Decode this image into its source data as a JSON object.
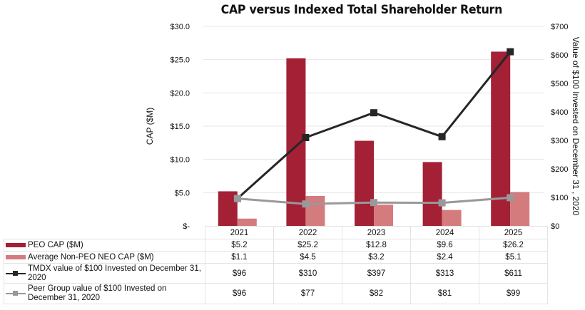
{
  "chart_data": {
    "type": "bar",
    "title": "CAP versus Indexed Total Shareholder Return",
    "categories": [
      "2021",
      "2022",
      "2023",
      "2024",
      "2025"
    ],
    "left_axis": {
      "label": "CAP ($M)",
      "range": [
        0,
        30
      ],
      "ticks": [
        0,
        5,
        10,
        15,
        20,
        25,
        30
      ],
      "tick_labels": [
        "$-",
        "$5.0",
        "$10.0",
        "$15.0",
        "$20.0",
        "$25.0",
        "$30.0"
      ]
    },
    "right_axis": {
      "label": "Value of $100 Invested on December 31 , 2020",
      "range": [
        0,
        700
      ],
      "ticks": [
        0,
        100,
        200,
        300,
        400,
        500,
        600,
        700
      ],
      "tick_labels": [
        "$0",
        "$100",
        "$200",
        "$300",
        "$400",
        "$500",
        "$600",
        "$700"
      ]
    },
    "grid": true,
    "legend_placement": "bottom-left (data table)",
    "series": [
      {
        "name": "PEO CAP ($M)",
        "type": "bar",
        "axis": "left",
        "color": "#a32035",
        "values": [
          5.2,
          25.2,
          12.8,
          9.6,
          26.2
        ],
        "labels": [
          "$5.2",
          "$25.2",
          "$12.8",
          "$9.6",
          "$26.2"
        ]
      },
      {
        "name": "Average Non-PEO NEO CAP ($M)",
        "type": "bar",
        "axis": "left",
        "color": "#d47b7e",
        "values": [
          1.1,
          4.5,
          3.2,
          2.4,
          5.1
        ],
        "labels": [
          "$1.1",
          "$4.5",
          "$3.2",
          "$2.4",
          "$5.1"
        ]
      },
      {
        "name": "TMDX value of $100 Invested on December 31, 2020",
        "type": "line",
        "axis": "right",
        "color": "#262626",
        "values": [
          96,
          310,
          397,
          313,
          611
        ],
        "labels": [
          "$96",
          "$310",
          "$397",
          "$313",
          "$611"
        ]
      },
      {
        "name": "Peer Group value of $100 Invested on December 31, 2020",
        "type": "line",
        "axis": "right",
        "color": "#999999",
        "values": [
          96,
          77,
          82,
          81,
          99
        ],
        "labels": [
          "$96",
          "$77",
          "$82",
          "$81",
          "$99"
        ]
      }
    ]
  }
}
